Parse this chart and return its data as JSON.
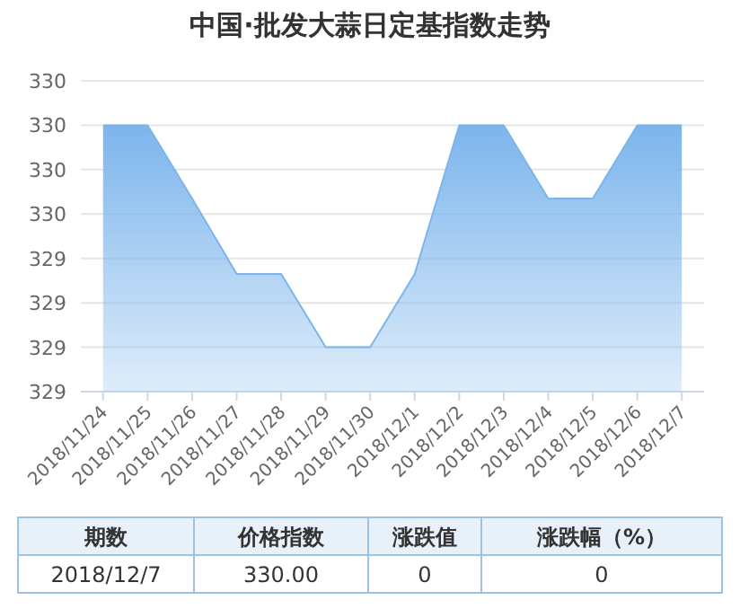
{
  "chart_data": {
    "type": "area",
    "title": "中国·批发大蒜日定基指数走势",
    "categories": [
      "2018/11/24",
      "2018/11/25",
      "2018/11/26",
      "2018/11/27",
      "2018/11/28",
      "2018/11/29",
      "2018/11/30",
      "2018/12/1",
      "2018/12/2",
      "2018/12/3",
      "2018/12/4",
      "2018/12/5",
      "2018/12/6",
      "2018/12/7"
    ],
    "values": [
      330.0,
      330.0,
      329.67,
      329.33,
      329.33,
      329.0,
      329.0,
      329.33,
      330.0,
      330.0,
      329.67,
      329.67,
      330.0,
      330.0
    ],
    "color": "#7cb5ec",
    "ylim": [
      328.8,
      330.2
    ],
    "yticks": [
      {
        "value": 328.8,
        "label": "329"
      },
      {
        "value": 329.0,
        "label": "329"
      },
      {
        "value": 329.2,
        "label": "329"
      },
      {
        "value": 329.4,
        "label": "329"
      },
      {
        "value": 329.6,
        "label": "330"
      },
      {
        "value": 329.8,
        "label": "330"
      },
      {
        "value": 330.0,
        "label": "330"
      },
      {
        "value": 330.2,
        "label": "330"
      }
    ],
    "grid": "y",
    "annotations": [
      "期数",
      "价格指数",
      "涨跌值",
      "涨跌幅（%）",
      "2018/12/7",
      "330.00",
      "0",
      "0"
    ]
  }
}
